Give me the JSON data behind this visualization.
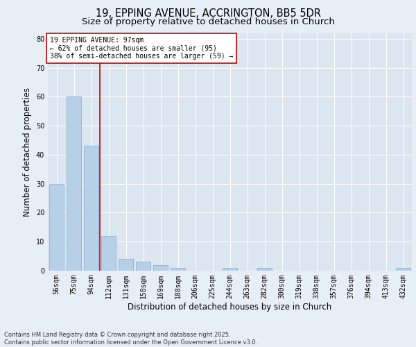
{
  "title1": "19, EPPING AVENUE, ACCRINGTON, BB5 5DR",
  "title2": "Size of property relative to detached houses in Church",
  "xlabel": "Distribution of detached houses by size in Church",
  "ylabel": "Number of detached properties",
  "categories": [
    "56sqm",
    "75sqm",
    "94sqm",
    "112sqm",
    "131sqm",
    "150sqm",
    "169sqm",
    "188sqm",
    "206sqm",
    "225sqm",
    "244sqm",
    "263sqm",
    "282sqm",
    "300sqm",
    "319sqm",
    "338sqm",
    "357sqm",
    "376sqm",
    "394sqm",
    "413sqm",
    "432sqm"
  ],
  "values": [
    30,
    60,
    43,
    12,
    4,
    3,
    2,
    1,
    0,
    0,
    1,
    0,
    1,
    0,
    0,
    0,
    0,
    0,
    0,
    0,
    1
  ],
  "bar_color": "#b8cfe8",
  "bar_edge_color": "#7aaad0",
  "vline_color": "#cc0000",
  "annotation_text": "19 EPPING AVENUE: 97sqm\n← 62% of detached houses are smaller (95)\n38% of semi-detached houses are larger (59) →",
  "annotation_box_color": "#ffffff",
  "annotation_box_edge": "#cc0000",
  "background_color": "#e8eef5",
  "plot_bg_color": "#dce6f0",
  "footer": "Contains HM Land Registry data © Crown copyright and database right 2025.\nContains public sector information licensed under the Open Government Licence v3.0.",
  "ylim": [
    0,
    82
  ],
  "yticks": [
    0,
    10,
    20,
    30,
    40,
    50,
    60,
    70,
    80
  ],
  "grid_color": "#ffffff",
  "title1_fontsize": 10.5,
  "title2_fontsize": 9.5,
  "tick_fontsize": 7,
  "xlabel_fontsize": 8.5,
  "ylabel_fontsize": 8.5,
  "annotation_fontsize": 7,
  "footer_fontsize": 6
}
